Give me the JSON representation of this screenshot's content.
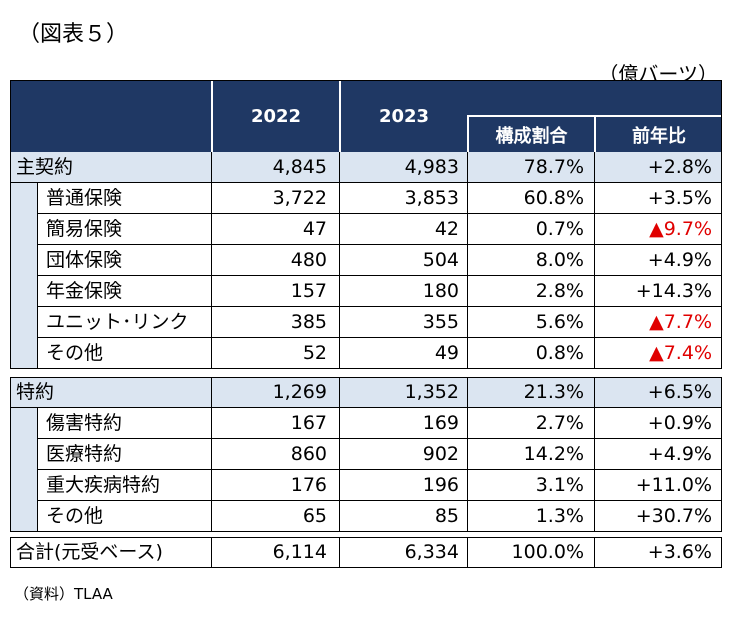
{
  "caption": "（図表５）",
  "unit": "（億バーツ）",
  "header": {
    "col2022": "2022",
    "col2023": "2023",
    "share": "構成割合",
    "yoy": "前年比"
  },
  "colors": {
    "header_bg": "#1f3864",
    "group_bg": "#dbe5f1",
    "negative": "#e00000"
  },
  "main": {
    "label": "主契約",
    "v2022": "4,845",
    "v2023": "4,983",
    "share": "78.7%",
    "yoy": "+2.8%",
    "items": [
      {
        "label": "普通保険",
        "v2022": "3,722",
        "v2023": "3,853",
        "share": "60.8%",
        "yoy": "+3.5%",
        "negative": false
      },
      {
        "label": "簡易保険",
        "v2022": "47",
        "v2023": "42",
        "share": "0.7%",
        "yoy": "▲9.7%",
        "negative": true
      },
      {
        "label": "団体保険",
        "v2022": "480",
        "v2023": "504",
        "share": "8.0%",
        "yoy": "+4.9%",
        "negative": false
      },
      {
        "label": "年金保険",
        "v2022": "157",
        "v2023": "180",
        "share": "2.8%",
        "yoy": "+14.3%",
        "negative": false
      },
      {
        "label": "ユニット･リンク",
        "v2022": "385",
        "v2023": "355",
        "share": "5.6%",
        "yoy": "▲7.7%",
        "negative": true
      },
      {
        "label": "その他",
        "v2022": "52",
        "v2023": "49",
        "share": "0.8%",
        "yoy": "▲7.4%",
        "negative": true
      }
    ]
  },
  "rider": {
    "label": "特約",
    "v2022": "1,269",
    "v2023": "1,352",
    "share": "21.3%",
    "yoy": "+6.5%",
    "items": [
      {
        "label": "傷害特約",
        "v2022": "167",
        "v2023": "169",
        "share": "2.7%",
        "yoy": "+0.9%",
        "negative": false
      },
      {
        "label": "医療特約",
        "v2022": "860",
        "v2023": "902",
        "share": "14.2%",
        "yoy": "+4.9%",
        "negative": false
      },
      {
        "label": "重大疾病特約",
        "v2022": "176",
        "v2023": "196",
        "share": "3.1%",
        "yoy": "+11.0%",
        "negative": false
      },
      {
        "label": "その他",
        "v2022": "65",
        "v2023": "85",
        "share": "1.3%",
        "yoy": "+30.7%",
        "negative": false
      }
    ]
  },
  "total": {
    "label": "合計(元受ベース)",
    "v2022": "6,114",
    "v2023": "6,334",
    "share": "100.0%",
    "yoy": "+3.6%"
  },
  "source": "（資料）TLAA"
}
